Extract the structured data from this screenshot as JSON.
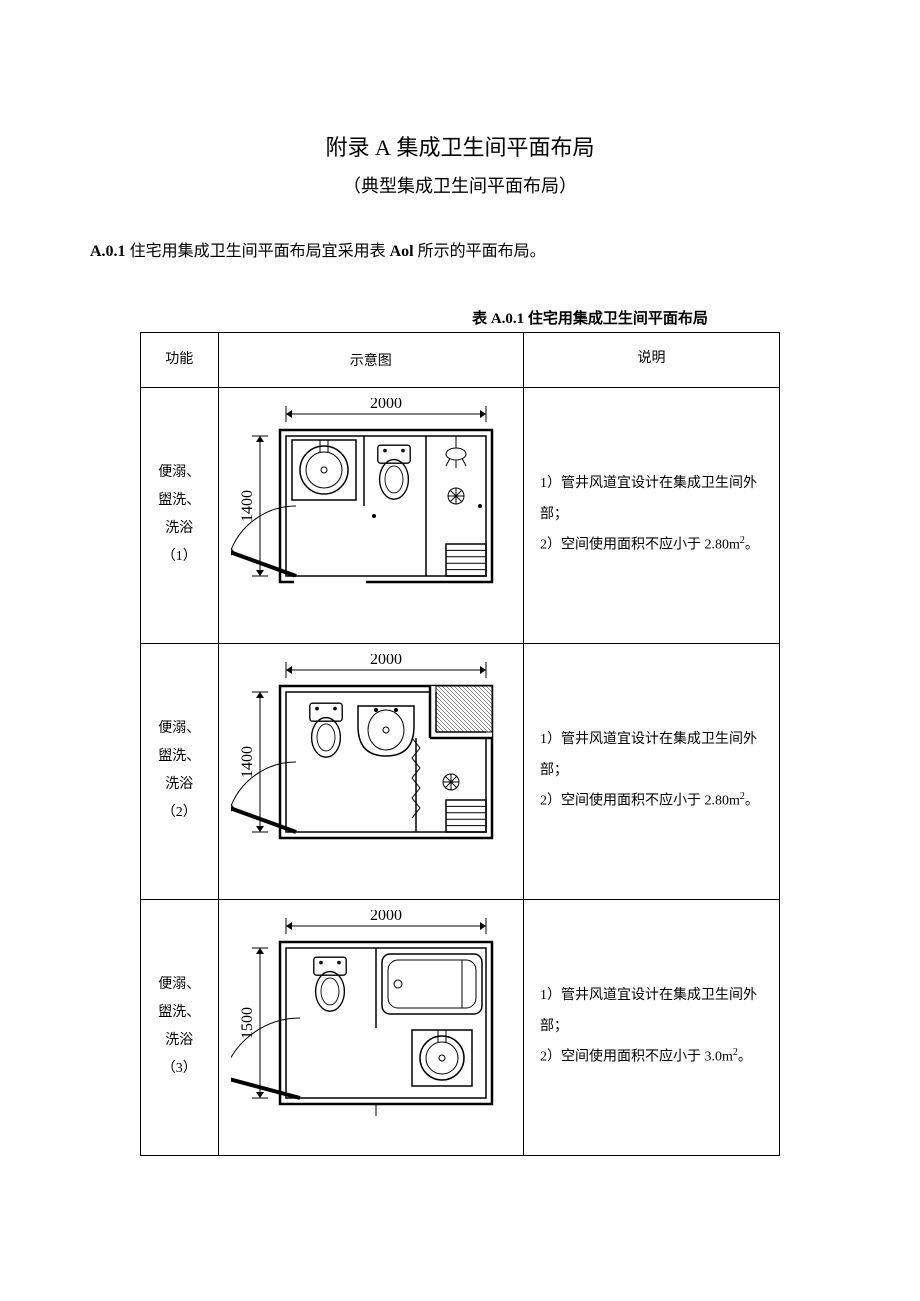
{
  "title_prefix": "附录 ",
  "title_letter": "A",
  "title_suffix": " 集成卫生间平面布局",
  "subtitle": "（典型集成卫生间平面布局）",
  "intro_section": "A.0.1",
  "intro_text_1": " 住宅用集成卫生间平面布局宜采用表 ",
  "intro_ref": "Aol",
  "intro_text_2": " 所示的平面布局。",
  "table_caption": "表 A.0.1 住宅用集成卫生间平面布局",
  "headers": {
    "func": "功能",
    "diagram": "示意图",
    "desc": "说明"
  },
  "rows": [
    {
      "func_lines": [
        "便溺、",
        "盥洗、",
        "洗浴",
        "（1）"
      ],
      "width_dim": "2000",
      "height_dim": "1400",
      "desc_1": "1）管井风道宜设计在集成卫生间外部；",
      "desc_2": "2）空间使用面积不应小于 2.80m²。",
      "layout": 1
    },
    {
      "func_lines": [
        "便溺、",
        "盥洗、",
        "洗浴",
        "（2）"
      ],
      "width_dim": "2000",
      "height_dim": "1400",
      "desc_1": "1）管井风道宜设计在集成卫生间外部；",
      "desc_2": "2）空间使用面积不应小于 2.80m²。",
      "layout": 2
    },
    {
      "func_lines": [
        "便溺、",
        "盥洗、",
        "洗浴",
        "（3）"
      ],
      "width_dim": "2000",
      "height_dim": "1500",
      "desc_1": "1）管井风道宜设计在集成卫生间外部；",
      "desc_2": "2）空间使用面积不应小于 3.0m²。",
      "layout": 3
    }
  ],
  "colors": {
    "stroke": "#000000",
    "bg": "#ffffff"
  }
}
